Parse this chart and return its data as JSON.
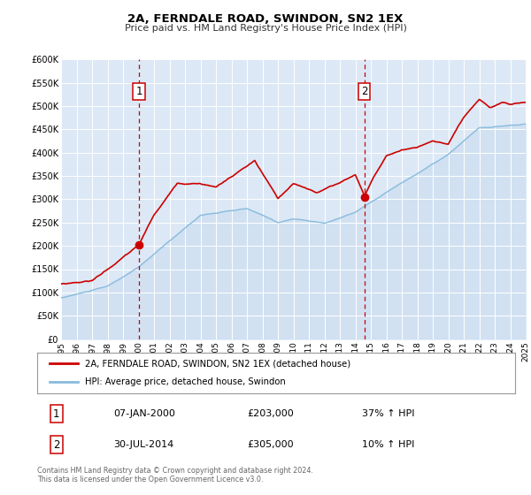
{
  "title": "2A, FERNDALE ROAD, SWINDON, SN2 1EX",
  "subtitle": "Price paid vs. HM Land Registry's House Price Index (HPI)",
  "legend_label1": "2A, FERNDALE ROAD, SWINDON, SN2 1EX (detached house)",
  "legend_label2": "HPI: Average price, detached house, Swindon",
  "marker1_date": 2000.03,
  "marker1_value": 203000,
  "marker2_date": 2014.58,
  "marker2_value": 305000,
  "marker1_text": "07-JAN-2000",
  "marker1_price": "£203,000",
  "marker1_hpi": "37% ↑ HPI",
  "marker2_text": "30-JUL-2014",
  "marker2_price": "£305,000",
  "marker2_hpi": "10% ↑ HPI",
  "xmin": 1995,
  "xmax": 2025,
  "ymin": 0,
  "ymax": 600000,
  "yticks": [
    0,
    50000,
    100000,
    150000,
    200000,
    250000,
    300000,
    350000,
    400000,
    450000,
    500000,
    550000,
    600000
  ],
  "ytick_labels": [
    "£0",
    "£50K",
    "£100K",
    "£150K",
    "£200K",
    "£250K",
    "£300K",
    "£350K",
    "£400K",
    "£450K",
    "£500K",
    "£550K",
    "£600K"
  ],
  "plot_bg_color": "#dce8f5",
  "line1_color": "#cc0000",
  "line2_color": "#88bbdd",
  "fill_color": "#c8dcf0",
  "footer": "Contains HM Land Registry data © Crown copyright and database right 2024.\nThis data is licensed under the Open Government Licence v3.0.",
  "xticks": [
    1995,
    1996,
    1997,
    1998,
    1999,
    2000,
    2001,
    2002,
    2003,
    2004,
    2005,
    2006,
    2007,
    2008,
    2009,
    2010,
    2011,
    2012,
    2013,
    2014,
    2015,
    2016,
    2017,
    2018,
    2019,
    2020,
    2021,
    2022,
    2023,
    2024,
    2025
  ]
}
